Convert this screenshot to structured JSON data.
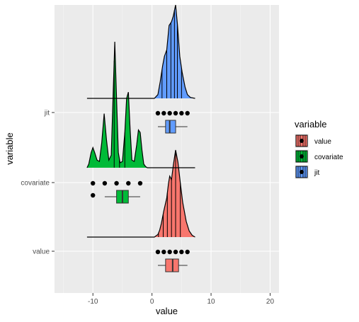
{
  "chart_data": {
    "type": "ridgeline",
    "xlabel": "value",
    "ylabel": "variable",
    "xlim": [
      -16.5,
      21.5
    ],
    "x_ticks": [
      -10,
      0,
      10,
      20
    ],
    "x_tick_labels": [
      "-10",
      "0",
      "10",
      "20"
    ],
    "y_categories": [
      "value",
      "covariate",
      "jit"
    ],
    "grid": true,
    "legend": {
      "title": "variable",
      "position": "right",
      "items": [
        {
          "label": "value",
          "color": "#F8766D"
        },
        {
          "label": "covariate",
          "color": "#00BA38"
        },
        {
          "label": "jit",
          "color": "#619CFF"
        }
      ]
    },
    "series": [
      {
        "name": "value",
        "color": "#F8766D",
        "density_x": [
          -11,
          0.4,
          1.0,
          1.3,
          1.6,
          2.0,
          2.5,
          2.8,
          3.0,
          3.3,
          3.6,
          4.0,
          4.4,
          4.8,
          5.2,
          5.8,
          6.3,
          6.8,
          7.3
        ],
        "density_h": [
          0,
          0,
          0.03,
          0.08,
          0.16,
          0.3,
          0.45,
          0.62,
          0.7,
          0.66,
          0.82,
          1.0,
          0.86,
          0.62,
          0.4,
          0.18,
          0.07,
          0.02,
          0
        ],
        "quantile_lines": [
          1.1,
          1.9,
          2.6,
          3.3,
          4.0,
          4.8
        ],
        "points": [
          1,
          2,
          3,
          4,
          5,
          6
        ],
        "box": {
          "min": 1,
          "q1": 2.3,
          "median": 3.5,
          "q3": 4.5,
          "max": 6
        }
      },
      {
        "name": "covariate",
        "color": "#00BA38",
        "density_x": [
          -11,
          -10.7,
          -10.3,
          -10.0,
          -9.7,
          -9.3,
          -8.9,
          -8.5,
          -8.1,
          -7.7,
          -7.3,
          -6.9,
          -6.6,
          -6.3,
          -6.0,
          -5.7,
          -5.4,
          -5.0,
          -4.6,
          -4.3,
          -4.0,
          -3.7,
          -3.4,
          -3.0,
          -2.6,
          -2.3,
          -2.0,
          -1.7,
          -1.4,
          -1.1,
          -0.8,
          7.3
        ],
        "density_h": [
          0,
          0.03,
          0.12,
          0.16,
          0.12,
          0.06,
          0.05,
          0.2,
          0.43,
          0.22,
          0.06,
          0.1,
          0.55,
          1.0,
          0.55,
          0.12,
          0.04,
          0.05,
          0.28,
          0.55,
          0.6,
          0.3,
          0.06,
          0.05,
          0.18,
          0.3,
          0.28,
          0.14,
          0.03,
          0.01,
          0,
          0
        ],
        "quantile_lines": [
          -6.4,
          -5.5,
          -4.6
        ],
        "points": [
          -10,
          -10,
          -8,
          -6,
          -4,
          -2
        ],
        "box": {
          "min": -8,
          "q1": -6,
          "median": -5,
          "q3": -4,
          "max": -2
        }
      },
      {
        "name": "jit",
        "color": "#619CFF",
        "density_x": [
          -11,
          0.4,
          1.0,
          1.4,
          1.8,
          2.1,
          2.5,
          2.9,
          3.3,
          3.6,
          4.0,
          4.3,
          4.7,
          5.1,
          5.6,
          6.0,
          6.5,
          7.3
        ],
        "density_h": [
          0,
          0,
          0.04,
          0.18,
          0.35,
          0.45,
          0.52,
          0.78,
          0.82,
          0.88,
          1.0,
          0.8,
          0.45,
          0.28,
          0.12,
          0.04,
          0.01,
          0
        ],
        "quantile_lines": [
          1.7,
          2.5,
          3.2,
          3.8,
          4.3,
          5.0
        ],
        "points": [
          1,
          2,
          3,
          4,
          5,
          6
        ],
        "box": {
          "min": 1,
          "q1": 2.3,
          "median": 3,
          "q3": 4,
          "max": 6
        }
      }
    ]
  }
}
